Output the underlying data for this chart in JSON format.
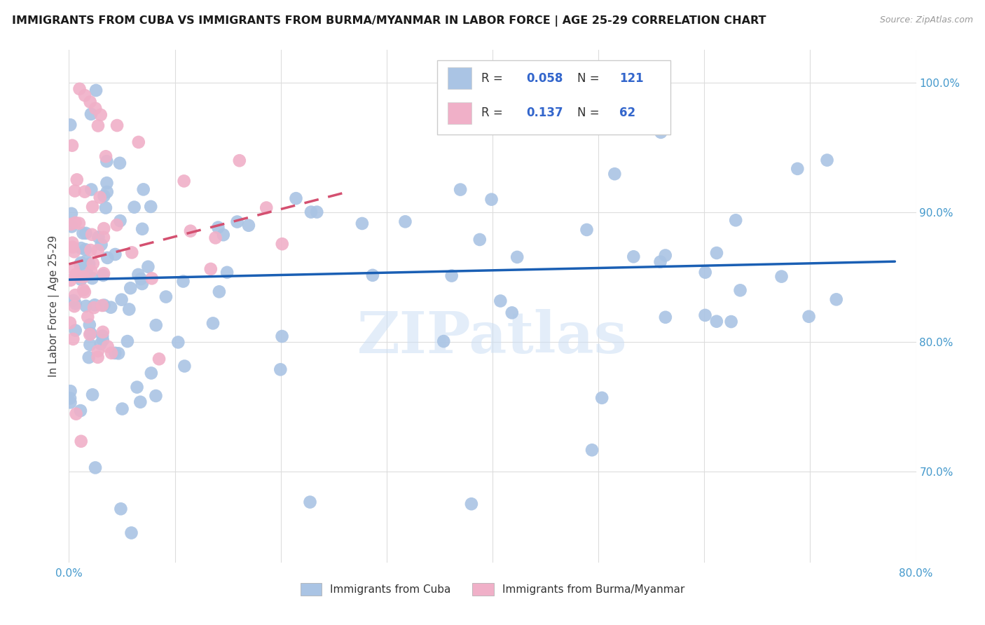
{
  "title": "IMMIGRANTS FROM CUBA VS IMMIGRANTS FROM BURMA/MYANMAR IN LABOR FORCE | AGE 25-29 CORRELATION CHART",
  "source": "Source: ZipAtlas.com",
  "ylabel": "In Labor Force | Age 25-29",
  "xlim": [
    0.0,
    0.8
  ],
  "ylim": [
    0.63,
    1.025
  ],
  "yticks": [
    0.7,
    0.8,
    0.9,
    1.0
  ],
  "yticklabels": [
    "70.0%",
    "80.0%",
    "90.0%",
    "100.0%"
  ],
  "xtick_positions": [
    0.0,
    0.1,
    0.2,
    0.3,
    0.4,
    0.5,
    0.6,
    0.7,
    0.8
  ],
  "xticklabels": [
    "0.0%",
    "",
    "",
    "",
    "",
    "",
    "",
    "",
    "80.0%"
  ],
  "cuba_color": "#aac4e4",
  "burma_color": "#f0b0c8",
  "cuba_trend_color": "#1a5fb4",
  "burma_trend_color": "#d45070",
  "R_cuba": 0.058,
  "N_cuba": 121,
  "R_burma": 0.137,
  "N_burma": 62,
  "watermark": "ZIPatlas",
  "legend_label_cuba": "Immigrants from Cuba",
  "legend_label_burma": "Immigrants from Burma/Myanmar",
  "grid_color": "#dddddd",
  "tick_color": "#4499cc"
}
